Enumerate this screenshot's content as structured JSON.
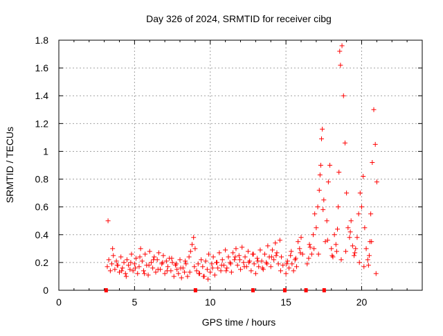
{
  "chart_data": {
    "type": "scatter",
    "title": "Day 326 of 2024, SRMTID for receiver cibg",
    "xlabel": "GPS time / hours",
    "ylabel": "SRMTID / TECUs",
    "xlim": [
      0,
      24
    ],
    "ylim": [
      0,
      1.8
    ],
    "xticks": [
      0,
      5,
      10,
      15,
      20
    ],
    "yticks": [
      0,
      0.2,
      0.4,
      0.6,
      0.8,
      1,
      1.2,
      1.4,
      1.6,
      1.8
    ],
    "xtick_labels": [
      "0",
      "5",
      "10",
      "15",
      "20"
    ],
    "ytick_labels": [
      "0",
      "0.2",
      "0.4",
      "0.6",
      "0.8",
      "1",
      "1.2",
      "1.4",
      "1.6",
      "1.8"
    ],
    "grid": true,
    "marker": "plus",
    "color": "#ff0000",
    "series": [
      {
        "name": "SRMTID",
        "x": [
          3.2,
          3.3,
          3.4,
          3.5,
          3.6,
          3.7,
          3.8,
          3.9,
          4.0,
          4.1,
          4.2,
          4.3,
          4.4,
          4.5,
          4.6,
          4.7,
          4.8,
          4.9,
          5.0,
          5.1,
          5.2,
          5.3,
          5.4,
          5.5,
          5.6,
          5.7,
          5.8,
          5.9,
          6.0,
          6.1,
          6.2,
          6.3,
          6.4,
          6.5,
          6.6,
          6.7,
          6.8,
          6.9,
          7.0,
          7.1,
          7.2,
          7.3,
          7.4,
          7.5,
          7.6,
          7.7,
          7.8,
          7.9,
          8.0,
          8.1,
          8.2,
          8.3,
          8.4,
          8.5,
          8.6,
          8.7,
          8.8,
          8.9,
          9.0,
          9.1,
          9.2,
          9.3,
          9.4,
          9.5,
          9.6,
          9.7,
          9.8,
          9.9,
          10.0,
          10.1,
          10.2,
          10.3,
          10.4,
          10.5,
          10.6,
          10.7,
          10.8,
          10.9,
          11.0,
          11.1,
          11.2,
          11.3,
          11.4,
          11.5,
          11.6,
          11.7,
          11.8,
          11.9,
          12.0,
          12.1,
          12.2,
          12.3,
          12.4,
          12.5,
          12.6,
          12.7,
          12.8,
          12.9,
          13.0,
          13.1,
          13.2,
          13.3,
          13.4,
          13.5,
          13.6,
          13.7,
          13.8,
          13.9,
          14.0,
          14.1,
          14.2,
          14.3,
          14.4,
          14.5,
          14.6,
          14.7,
          14.8,
          15.0,
          15.1,
          15.2,
          15.3,
          15.4,
          15.5,
          15.6,
          15.7,
          15.8,
          15.9,
          16.0,
          16.1,
          16.4,
          16.5,
          16.6,
          16.7,
          16.8,
          16.9,
          17.0,
          17.1,
          17.2,
          17.25,
          17.3,
          17.35,
          17.4,
          17.5,
          17.6,
          17.7,
          17.8,
          17.9,
          18.0,
          18.1,
          18.2,
          18.3,
          18.35,
          18.4,
          18.45,
          18.5,
          18.55,
          18.6,
          18.7,
          18.8,
          18.9,
          19.0,
          19.1,
          19.2,
          19.3,
          19.4,
          19.5,
          19.6,
          19.7,
          19.8,
          19.9,
          20.0,
          20.1,
          20.2,
          20.3,
          20.4,
          20.45,
          20.5,
          20.55,
          20.6,
          20.7,
          20.8,
          20.9,
          21.0,
          3.25,
          3.55,
          3.85,
          4.15,
          4.45,
          4.75,
          5.05,
          5.35,
          5.65,
          5.95,
          6.25,
          6.55,
          6.85,
          7.15,
          7.45,
          7.75,
          8.05,
          8.35,
          8.65,
          8.95,
          9.25,
          9.55,
          9.85,
          10.15,
          10.45,
          10.75,
          11.05,
          11.35,
          11.65,
          11.95,
          12.25,
          12.55,
          12.85,
          13.15,
          13.45,
          13.75,
          14.05,
          14.35,
          14.65,
          15.05,
          15.35,
          15.65,
          15.95,
          16.55,
          16.85,
          17.15,
          17.45,
          17.75,
          18.05,
          18.65,
          18.95,
          19.25,
          19.55,
          19.85,
          20.15,
          20.65,
          20.95
        ],
        "y": [
          0.17,
          0.22,
          0.14,
          0.19,
          0.25,
          0.15,
          0.21,
          0.18,
          0.13,
          0.24,
          0.16,
          0.2,
          0.12,
          0.22,
          0.18,
          0.15,
          0.26,
          0.14,
          0.19,
          0.23,
          0.12,
          0.17,
          0.3,
          0.21,
          0.14,
          0.26,
          0.18,
          0.11,
          0.28,
          0.2,
          0.16,
          0.24,
          0.13,
          0.22,
          0.27,
          0.15,
          0.19,
          0.25,
          0.12,
          0.21,
          0.17,
          0.23,
          0.14,
          0.2,
          0.1,
          0.18,
          0.15,
          0.12,
          0.22,
          0.09,
          0.16,
          0.13,
          0.19,
          0.1,
          0.24,
          0.28,
          0.33,
          0.38,
          0.3,
          0.14,
          0.19,
          0.12,
          0.22,
          0.17,
          0.1,
          0.21,
          0.15,
          0.26,
          0.13,
          0.19,
          0.24,
          0.11,
          0.2,
          0.16,
          0.27,
          0.14,
          0.22,
          0.18,
          0.29,
          0.16,
          0.24,
          0.2,
          0.13,
          0.27,
          0.22,
          0.3,
          0.18,
          0.25,
          0.15,
          0.31,
          0.2,
          0.24,
          0.17,
          0.28,
          0.21,
          0.14,
          0.26,
          0.19,
          0.12,
          0.23,
          0.17,
          0.29,
          0.21,
          0.15,
          0.26,
          0.2,
          0.32,
          0.24,
          0.17,
          0.29,
          0.22,
          0.34,
          0.27,
          0.19,
          0.36,
          0.24,
          0.18,
          0.12,
          0.21,
          0.16,
          0.25,
          0.19,
          0.14,
          0.22,
          0.17,
          0.35,
          0.3,
          0.38,
          0.26,
          0.19,
          0.23,
          0.31,
          0.26,
          0.4,
          0.55,
          0.45,
          0.6,
          0.72,
          0.83,
          0.9,
          1.09,
          1.16,
          0.65,
          0.35,
          0.5,
          0.78,
          0.9,
          0.3,
          0.24,
          0.4,
          0.33,
          0.28,
          0.44,
          0.6,
          0.85,
          1.72,
          1.62,
          1.76,
          1.4,
          1.06,
          0.7,
          0.45,
          0.38,
          0.5,
          0.32,
          0.25,
          0.3,
          0.38,
          0.55,
          0.7,
          0.6,
          0.82,
          0.45,
          0.3,
          0.22,
          0.18,
          0.25,
          0.35,
          0.55,
          0.92,
          1.3,
          1.05,
          0.78,
          0.5,
          0.3,
          0.18,
          0.14,
          0.1,
          0.2,
          0.16,
          0.24,
          0.12,
          0.18,
          0.22,
          0.15,
          0.2,
          0.14,
          0.23,
          0.19,
          0.16,
          0.21,
          0.13,
          0.17,
          0.12,
          0.1,
          0.08,
          0.16,
          0.2,
          0.18,
          0.14,
          0.19,
          0.24,
          0.22,
          0.17,
          0.2,
          0.26,
          0.21,
          0.16,
          0.19,
          0.24,
          0.25,
          0.14,
          0.19,
          0.28,
          0.23,
          0.27,
          0.33,
          0.3,
          0.26,
          0.58,
          0.36,
          0.25,
          0.22,
          0.28,
          0.42,
          0.27,
          0.2,
          0.17,
          0.35,
          0.12
        ]
      }
    ],
    "baseline_markers_x": [
      3.1,
      9.0,
      12.8,
      14.9,
      16.3,
      17.5
    ]
  }
}
